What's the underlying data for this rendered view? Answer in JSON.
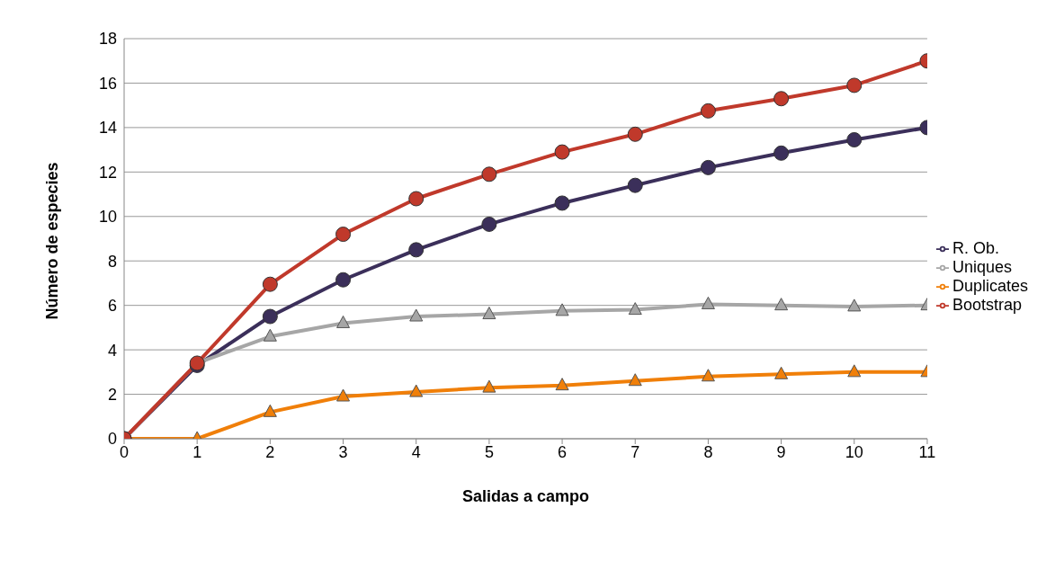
{
  "chart_data": {
    "type": "line",
    "xlabel": "Salidas a campo",
    "ylabel": "Número de especies",
    "x": [
      0,
      1,
      2,
      3,
      4,
      5,
      6,
      7,
      8,
      9,
      10,
      11
    ],
    "xlim": [
      0,
      11
    ],
    "xticks": [
      0,
      1,
      2,
      3,
      4,
      5,
      6,
      7,
      8,
      9,
      10,
      11
    ],
    "ylim": [
      0,
      18
    ],
    "yticks": [
      0,
      2,
      4,
      6,
      8,
      10,
      12,
      14,
      16,
      18
    ],
    "grid": "y",
    "legend": "right",
    "line_style": "solid",
    "series": [
      {
        "name": "R. Ob.",
        "color": "#3b2f5a",
        "marker": "circle",
        "values": [
          0,
          3.3,
          5.5,
          7.15,
          8.5,
          9.65,
          10.6,
          11.4,
          12.2,
          12.85,
          13.45,
          14
        ]
      },
      {
        "name": "Uniques",
        "color": "#a6a6a6",
        "marker": "triangle",
        "values": [
          0,
          3.4,
          4.6,
          5.2,
          5.5,
          5.6,
          5.75,
          5.8,
          6.05,
          6.0,
          5.95,
          6.0
        ]
      },
      {
        "name": "Duplicates",
        "color": "#f07f09",
        "marker": "triangle",
        "values": [
          0,
          0,
          1.2,
          1.9,
          2.1,
          2.3,
          2.4,
          2.6,
          2.8,
          2.9,
          3.0,
          3.0
        ]
      },
      {
        "name": "Bootstrap",
        "color": "#c0392b",
        "marker": "circle",
        "values": [
          0,
          3.4,
          6.95,
          9.2,
          10.8,
          11.9,
          12.9,
          13.7,
          14.75,
          15.3,
          15.9,
          17
        ]
      }
    ]
  }
}
